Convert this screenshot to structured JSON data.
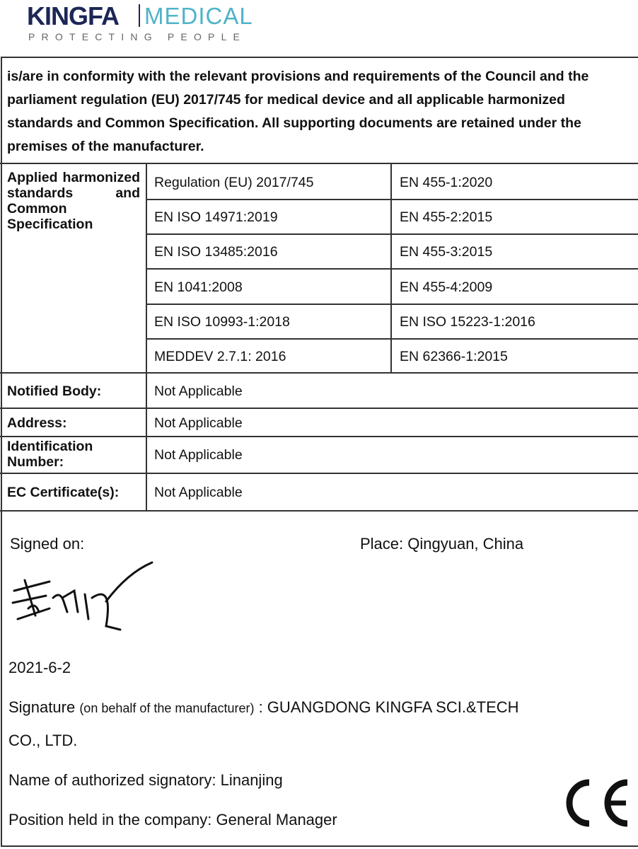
{
  "logo": {
    "brand": "KINGFA",
    "division": "MEDICAL",
    "tagline": "PROTECTING PEOPLE",
    "colors": {
      "brand": "#1c2756",
      "division": "#4fb3c9"
    }
  },
  "intro": "is/are in conformity with the relevant provisions and requirements of the Council and the parliament regulation (EU) 2017/745 for medical device and all applicable harmonized standards and Common Specification. All supporting documents are retained under the premises of the manufacturer.",
  "standards": {
    "label": "Applied harmonized standards and Common Specification",
    "rows": [
      [
        "Regulation (EU) 2017/745",
        "EN 455-1:2020"
      ],
      [
        "EN ISO 14971:2019",
        "EN 455-2:2015"
      ],
      [
        "EN ISO 13485:2016",
        "EN 455-3:2015"
      ],
      [
        "EN 1041:2008",
        "EN 455-4:2009"
      ],
      [
        "EN ISO 10993-1:2018",
        "EN ISO 15223-1:2016"
      ],
      [
        "MEDDEV 2.7.1: 2016",
        "EN 62366-1:2015"
      ]
    ]
  },
  "info": [
    {
      "label": "Notified Body:",
      "value": "Not Applicable"
    },
    {
      "label": "Address:",
      "value": "Not Applicable"
    },
    {
      "label": "Identification Number:",
      "value": "Not Applicable"
    },
    {
      "label": "EC Certificate(s):",
      "value": "Not Applicable"
    }
  ],
  "signing": {
    "signed_on": "Signed on:",
    "place": "Place: Qingyuan, China",
    "date": "2021-6-2",
    "signature_label": "Signature",
    "signature_note": "(on behalf of the manufacturer)",
    "manufacturer": ": GUANGDONG KINGFA SCI.&TECH",
    "manufacturer_cont": "CO., LTD.",
    "signatory": "Name of authorized signatory:  Linanjing",
    "position": "Position held in the company: General Manager",
    "mark": "CE"
  }
}
